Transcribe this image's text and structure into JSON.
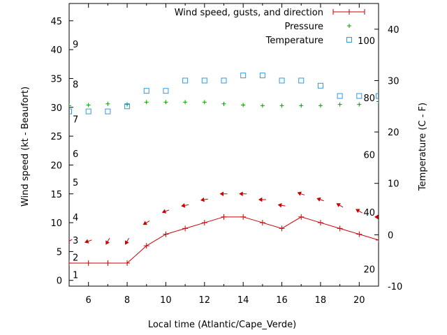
{
  "chart_data": {
    "type": "line",
    "xlabel": "Local time (Atlantic/Cape_Verde)",
    "ylabel": "Wind speed (kt - Beaufort)",
    "y2label": "Temperature (C - F)",
    "xlim": [
      5,
      21
    ],
    "ylim": [
      -1,
      48
    ],
    "y2lim": [
      -10,
      45
    ],
    "x_ticks": [
      6,
      8,
      10,
      12,
      14,
      16,
      18,
      20
    ],
    "y_ticks": [
      0,
      5,
      10,
      15,
      20,
      25,
      30,
      35,
      40,
      45
    ],
    "y2_ticks": [
      -10,
      0,
      10,
      20,
      30,
      40
    ],
    "beaufort_labels": [
      {
        "label": "1",
        "y": 1
      },
      {
        "label": "2",
        "y": 4
      },
      {
        "label": "3",
        "y": 7
      },
      {
        "label": "4",
        "y": 11
      },
      {
        "label": "5",
        "y": 17
      },
      {
        "label": "6",
        "y": 22
      },
      {
        "label": "7",
        "y": 28
      },
      {
        "label": "8",
        "y": 34
      },
      {
        "label": "9",
        "y": 41
      }
    ],
    "fahrenheit_labels": [
      {
        "label": "20",
        "y2": -6.7
      },
      {
        "label": "40",
        "y2": 4.4
      },
      {
        "label": "60",
        "y2": 15.6
      },
      {
        "label": "80",
        "y2": 26.7
      },
      {
        "label": "100",
        "y2": 37.8
      }
    ],
    "series": [
      {
        "name": "Wind speed, gusts, and direction",
        "color": "#cc0000",
        "marker": "plus-line",
        "x": [
          5,
          6,
          7,
          8,
          9,
          10,
          11,
          12,
          13,
          14,
          15,
          16,
          17,
          18,
          19,
          20,
          21
        ],
        "values": [
          3,
          3,
          3,
          3,
          6,
          8,
          9,
          10,
          11,
          11,
          10,
          9,
          11,
          10,
          9,
          8,
          7
        ]
      },
      {
        "name": "Pressure",
        "color": "#00a000",
        "marker": "plus",
        "x": [
          5,
          6,
          7,
          8,
          9,
          10,
          11,
          12,
          13,
          14,
          15,
          16,
          17,
          18,
          19,
          20,
          21
        ],
        "values": [
          30.3,
          30.4,
          30.6,
          30.5,
          30.9,
          30.9,
          30.9,
          30.9,
          30.6,
          30.4,
          30.3,
          30.3,
          30.3,
          30.3,
          30.5,
          30.5,
          31.0
        ]
      },
      {
        "name": "Temperature",
        "color": "#3399dd",
        "marker": "square",
        "axis": "y2",
        "x": [
          5,
          6,
          7,
          8,
          9,
          10,
          11,
          12,
          13,
          14,
          15,
          16,
          17,
          18,
          19,
          20,
          21
        ],
        "values": [
          24,
          24,
          24,
          25,
          28,
          28,
          30,
          30,
          30,
          31,
          31,
          30,
          30,
          29,
          27,
          27,
          27
        ]
      }
    ],
    "wind_arrows": {
      "color": "#cc0000",
      "x": [
        5,
        6,
        7,
        8,
        9,
        10,
        11,
        12,
        13,
        14,
        15,
        16,
        17,
        18,
        19,
        20,
        21
      ],
      "y": [
        6.8,
        6.8,
        6.8,
        6.8,
        10,
        12,
        13,
        14,
        15,
        15,
        14,
        13,
        15,
        14,
        13,
        12,
        11
      ],
      "direction_from_deg": [
        60,
        70,
        30,
        30,
        60,
        70,
        80,
        80,
        90,
        90,
        90,
        100,
        110,
        110,
        120,
        120,
        90
      ]
    },
    "legend_position": "top-right",
    "grid": false
  }
}
